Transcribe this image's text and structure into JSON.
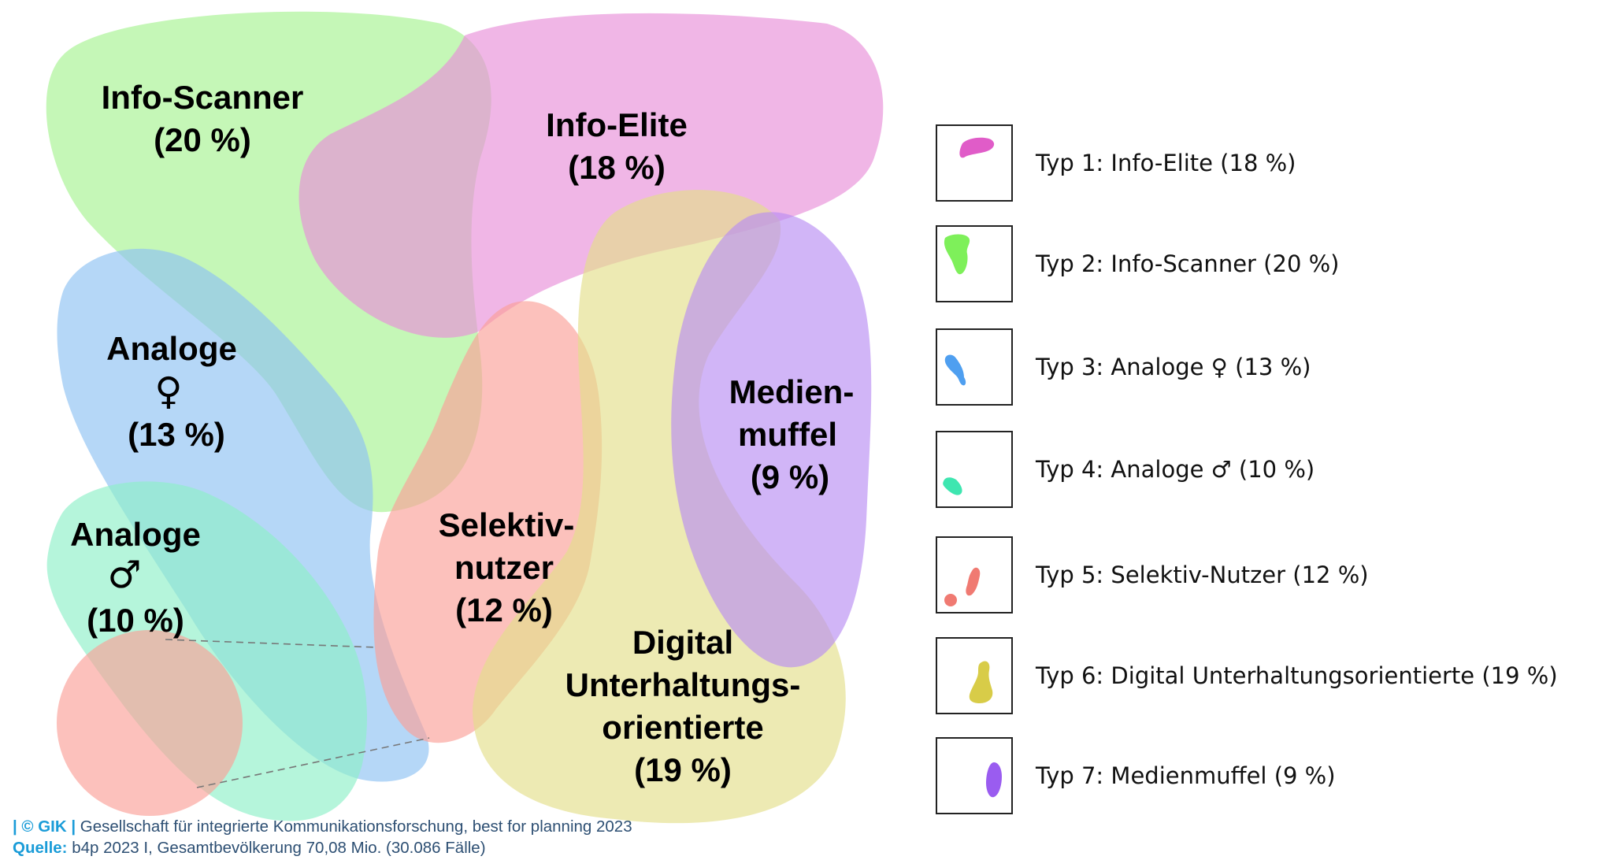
{
  "diagram": {
    "clusters": [
      {
        "id": "info-scanner",
        "name": "Info-Scanner",
        "percent": "(20 %)",
        "color": "#a6f291"
      },
      {
        "id": "info-elite",
        "name": "Info-Elite",
        "percent": "(18 %)",
        "color": "#e88fd8"
      },
      {
        "id": "analoge-f",
        "name": "Analoge",
        "symbol": "♀",
        "percent": "(13 %)",
        "color": "#8ec2f2"
      },
      {
        "id": "analoge-m",
        "name": "Analoge",
        "symbol": "♂",
        "percent": "(10 %)",
        "color": "#8ef0c8"
      },
      {
        "id": "selektiv",
        "name_line1": "Selektiv-",
        "name_line2": "nutzer",
        "percent": "(12 %)",
        "color": "#fb9f98"
      },
      {
        "id": "digital",
        "name_line1": "Digital",
        "name_line2": "Unterhaltungs-",
        "name_line3": "orientierte",
        "percent": "(19 %)",
        "color": "#e4de8a"
      },
      {
        "id": "medienmuffel",
        "name_line1": "Medien-",
        "name_line2": "muffel",
        "percent": "(9 %)",
        "color": "#b98ef2"
      }
    ]
  },
  "legend": {
    "items": [
      {
        "label": "Typ 1: Info-Elite (18 %)",
        "color": "#e05cc8"
      },
      {
        "label": "Typ 2: Info-Scanner (20 %)",
        "color": "#7ef05a"
      },
      {
        "label": "Typ 3: Analoge ♀ (13 %)",
        "color": "#4f9ff0"
      },
      {
        "label": "Typ 4: Analoge ♂ (10 %)",
        "color": "#3ee6b0"
      },
      {
        "label": "Typ 5: Selektiv-Nutzer (12 %)",
        "color": "#f07a72"
      },
      {
        "label": "Typ 6: Digital Unterhaltungsorientierte (19 %)",
        "color": "#d8cc48"
      },
      {
        "label": "Typ 7: Medienmuffel (9 %)",
        "color": "#9a5cf0"
      }
    ]
  },
  "footer": {
    "copyright_mark": "| © GIK |",
    "copyright_text": " Gesellschaft für integrierte Kommunikationsforschung, best for planning 2023",
    "source_label": "Quelle:",
    "source_text": " b4p 2023 I, Gesamtbevölkerung 70,08 Mio. (30.086 Fälle)"
  }
}
